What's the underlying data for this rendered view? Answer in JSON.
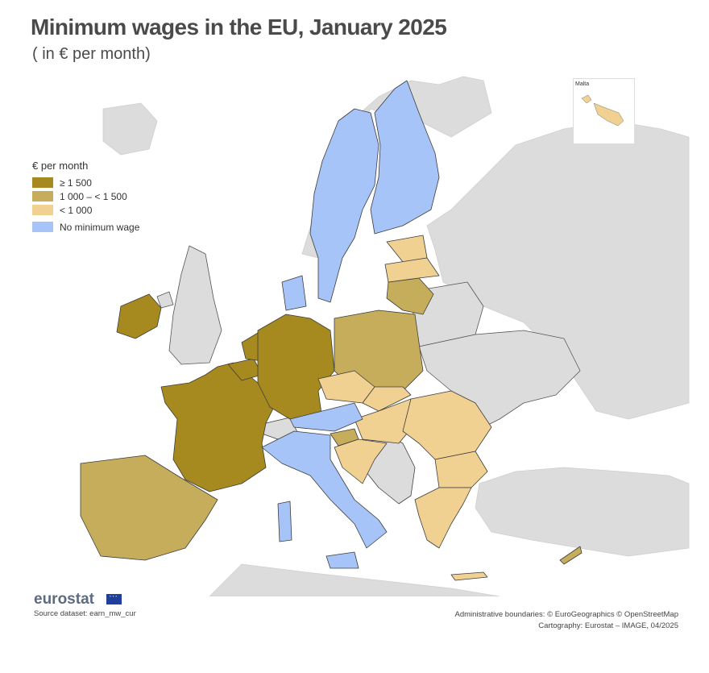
{
  "header": {
    "title": "Minimum wages in the EU, January 2025",
    "subtitle": "( in € per month)"
  },
  "legend": {
    "title": "€ per month",
    "classes": [
      {
        "label": "≥ 1 500",
        "color": "#a68a1f"
      },
      {
        "label": "1 000 – < 1 500",
        "color": "#c6ad5c"
      },
      {
        "label": "< 1 000",
        "color": "#f0d192"
      },
      {
        "label": "No minimum wage",
        "color": "#a6c4f8"
      }
    ]
  },
  "colors": {
    "background_land": "#dcdcdc",
    "border": "#3c3c3c",
    "sea": "#ffffff"
  },
  "countries": {
    "ge_1500": [
      "Ireland",
      "France",
      "Belgium",
      "Netherlands",
      "Luxembourg",
      "Germany"
    ],
    "1000_1500": [
      "Spain",
      "Portugal",
      "Poland",
      "Lithuania",
      "Slovenia",
      "Cyprus"
    ],
    "lt_1000": [
      "Estonia",
      "Latvia",
      "Czechia",
      "Slovakia",
      "Hungary",
      "Romania",
      "Bulgaria",
      "Croatia",
      "Greece",
      "Malta"
    ],
    "no_minimum_wage": [
      "Denmark",
      "Sweden",
      "Finland",
      "Austria",
      "Italy"
    ]
  },
  "inset": {
    "label": "Malta"
  },
  "footer": {
    "logo": "eurostat",
    "source": "Source dataset: earn_mw_cur",
    "credit_line1": "Administrative boundaries: © EuroGeographics © OpenStreetMap",
    "credit_line2": "Cartography: Eurostat – IMAGE, 04/2025"
  }
}
